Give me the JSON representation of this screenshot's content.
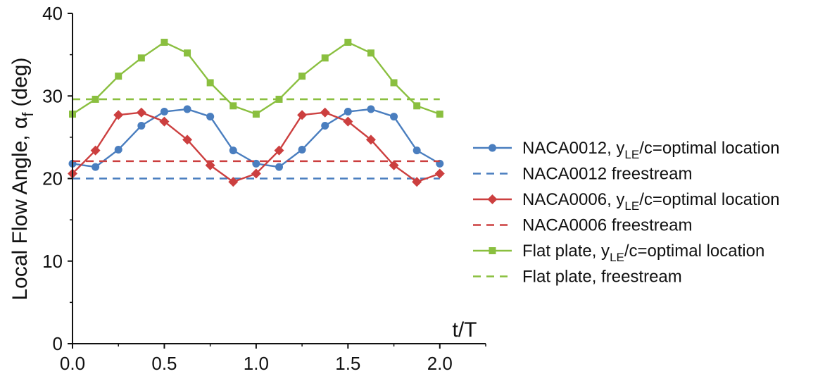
{
  "chart_data": {
    "type": "line",
    "x": [
      0.0,
      0.125,
      0.25,
      0.375,
      0.5,
      0.625,
      0.75,
      0.875,
      1.0,
      1.125,
      1.25,
      1.375,
      1.5,
      1.625,
      1.75,
      1.875,
      2.0
    ],
    "xlabel": "t/T",
    "ylabel": "Local Flow Angle, α",
    "ylabel_sub": "f",
    "ylabel_unit": "(deg)",
    "xlim": [
      0.0,
      2.25
    ],
    "ylim": [
      0,
      40
    ],
    "xticks": [
      "0.0",
      "0.5",
      "1.0",
      "1.5",
      "2.0"
    ],
    "xtick_values": [
      0.0,
      0.5,
      1.0,
      1.5,
      2.0
    ],
    "yticks": [
      "0",
      "10",
      "20",
      "30",
      "40"
    ],
    "ytick_values": [
      0,
      10,
      20,
      30,
      40
    ],
    "grid": false,
    "legend_position": "right",
    "series": [
      {
        "name": "NACA0012, y_LE/c=optimal location",
        "label_main": "NACA0012, y",
        "label_sub": "LE",
        "label_tail": "/c=optimal location",
        "color": "#4a7ebf",
        "marker": "circle",
        "dashed": false,
        "values": [
          21.8,
          21.4,
          23.5,
          26.4,
          28.1,
          28.4,
          27.5,
          23.4,
          21.8,
          21.4,
          23.5,
          26.4,
          28.1,
          28.4,
          27.5,
          23.4,
          21.8
        ]
      },
      {
        "name": "NACA0012 freestream",
        "label_main": "NACA0012 freestream",
        "color": "#4a7ebf",
        "marker": "none",
        "dashed": true,
        "constant": 20.0
      },
      {
        "name": "NACA0006, y_LE/c=optimal location",
        "label_main": "NACA0006, y",
        "label_sub": "LE",
        "label_tail": "/c=optimal location",
        "color": "#cc3f3f",
        "marker": "diamond",
        "dashed": false,
        "values": [
          20.6,
          23.4,
          27.7,
          28.0,
          26.9,
          24.7,
          21.6,
          19.6,
          20.6,
          23.4,
          27.7,
          28.0,
          26.9,
          24.7,
          21.6,
          19.6,
          20.6
        ]
      },
      {
        "name": "NACA0006 freestream",
        "label_main": "NACA0006 freestream",
        "color": "#cc3f3f",
        "marker": "none",
        "dashed": true,
        "constant": 22.1
      },
      {
        "name": "Flat plate, y_LE/c=optimal location",
        "label_main": "Flat plate, y",
        "label_sub": "LE",
        "label_tail": "/c=optimal location",
        "color": "#8abf3f",
        "marker": "square",
        "dashed": false,
        "values": [
          27.8,
          29.6,
          32.4,
          34.6,
          36.5,
          35.2,
          31.6,
          28.8,
          27.8,
          29.6,
          32.4,
          34.6,
          36.5,
          35.2,
          31.6,
          28.8,
          27.8
        ]
      },
      {
        "name": "Flat plate, freestream",
        "label_main": "Flat plate, freestream",
        "color": "#8abf3f",
        "marker": "none",
        "dashed": true,
        "constant": 29.6
      }
    ]
  }
}
